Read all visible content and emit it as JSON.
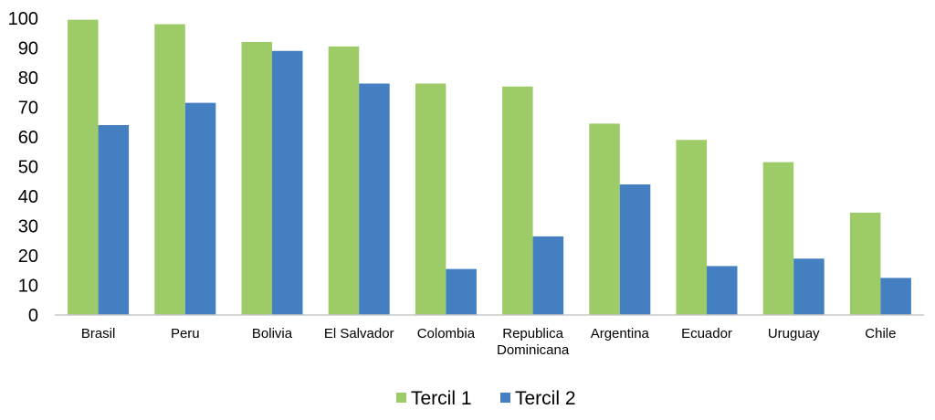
{
  "chart_data": {
    "type": "bar",
    "categories": [
      [
        "Brasil"
      ],
      [
        "Peru"
      ],
      [
        "Bolivia"
      ],
      [
        "El Salvador"
      ],
      [
        "Colombia"
      ],
      [
        "Republica",
        "Dominicana"
      ],
      [
        "Argentina"
      ],
      [
        "Ecuador"
      ],
      [
        "Uruguay"
      ],
      [
        "Chile"
      ]
    ],
    "series": [
      {
        "name": "Tercil 1",
        "color": "#9dcb67",
        "values": [
          99.5,
          98,
          92,
          90.5,
          78,
          77,
          64.5,
          59,
          51.5,
          34.5
        ]
      },
      {
        "name": "Tercil 2",
        "color": "#447fc1",
        "values": [
          64,
          71.5,
          89,
          78,
          15.5,
          26.5,
          44,
          16.5,
          19,
          12.5
        ]
      }
    ],
    "ylim": [
      0,
      100
    ],
    "yticks": [
      "0",
      "10",
      "20",
      "30",
      "40",
      "50",
      "60",
      "70",
      "80",
      "90",
      "100"
    ],
    "grid": false,
    "legend_position": "bottom",
    "title": "",
    "xlabel": "",
    "ylabel": ""
  }
}
